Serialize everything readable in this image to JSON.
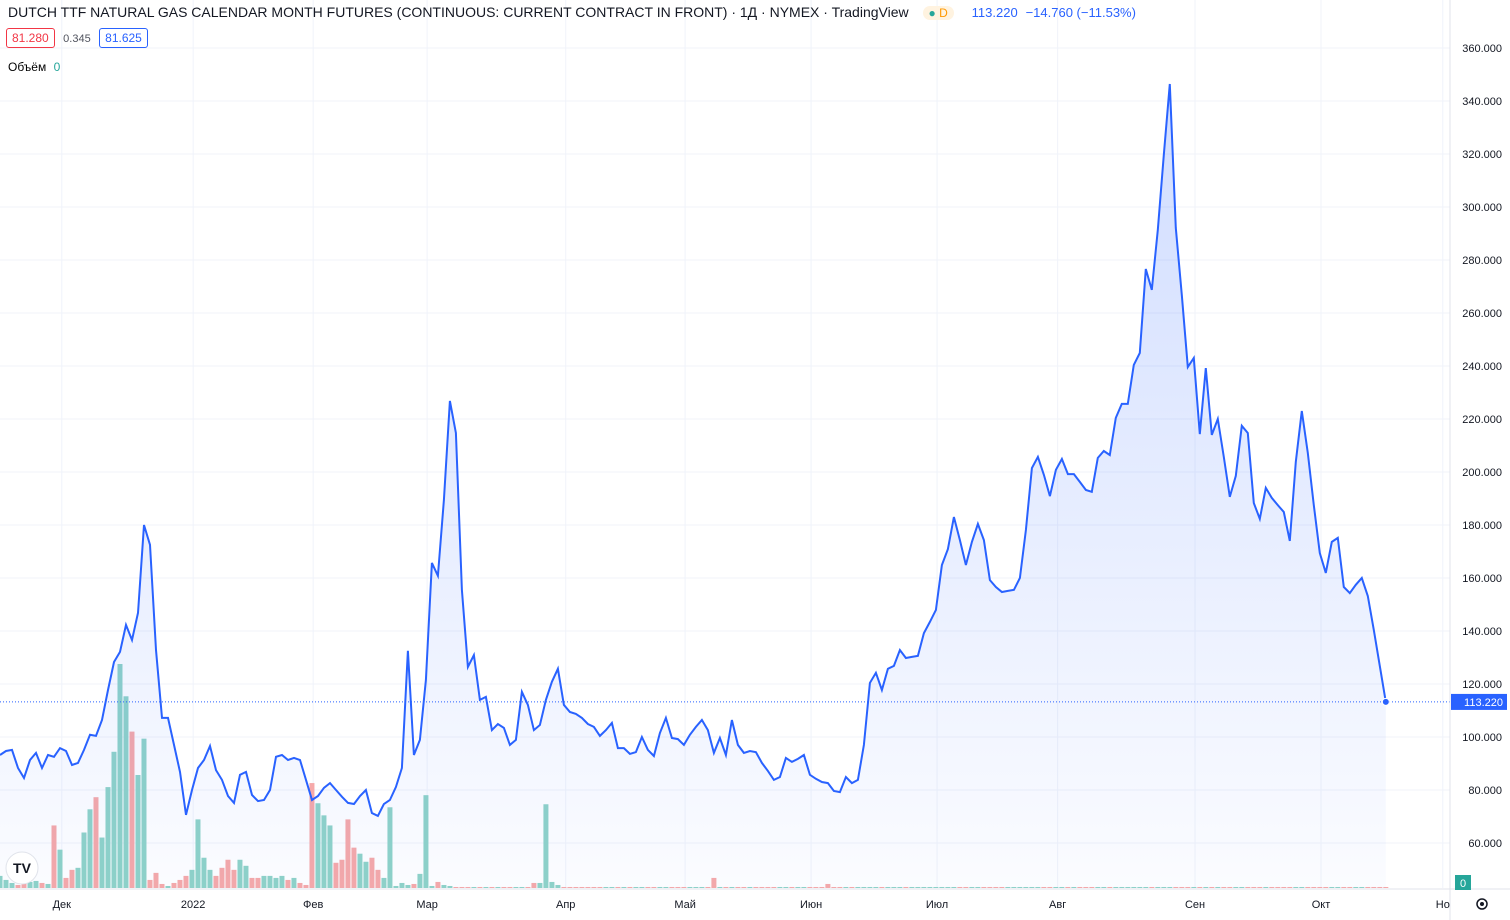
{
  "header": {
    "title": "DUTCH TTF NATURAL GAS CALENDAR MONTH FUTURES (CONTINUOUS: CURRENT CONTRACT IN FRONT) · 1Д · NYMEX · TradingView",
    "interval_badge": "D",
    "last": "113.220",
    "change": "−14.760 (−11.53%)",
    "bid": "81.280",
    "spread": "0.345",
    "ask": "81.625",
    "volume_label": "Объём",
    "volume_value": "0"
  },
  "chart_data": {
    "type": "area",
    "color": "#2962ff",
    "values": [
      93.2,
      94.7,
      95.1,
      88.3,
      84.5,
      91.3,
      94.0,
      88.3,
      93.2,
      92.5,
      95.8,
      94.7,
      89.4,
      90.2,
      95.1,
      100.8,
      100.4,
      106.4,
      117.7,
      128.3,
      132.1,
      142.3,
      136.6,
      146.8,
      180.0,
      172.5,
      132.8,
      107.2,
      107.2,
      97.0,
      86.8,
      70.6,
      80.0,
      88.3,
      91.3,
      96.6,
      87.5,
      83.8,
      77.7,
      75.1,
      85.7,
      86.8,
      78.1,
      75.8,
      76.2,
      80.0,
      92.5,
      93.2,
      91.3,
      92.1,
      91.3,
      83.8,
      76.2,
      77.7,
      80.8,
      82.6,
      80.0,
      77.4,
      75.1,
      74.7,
      77.7,
      80.0,
      71.3,
      70.2,
      74.7,
      76.2,
      81.1,
      88.3,
      132.5,
      93.2,
      98.9,
      121.5,
      165.7,
      160.8,
      189.4,
      226.8,
      214.7,
      155.5,
      126.4,
      130.9,
      114.0,
      115.1,
      102.6,
      104.9,
      103.4,
      97.0,
      98.9,
      117.0,
      112.1,
      102.6,
      104.5,
      114.0,
      120.8,
      125.7,
      112.1,
      109.4,
      108.7,
      107.2,
      104.9,
      103.8,
      100.4,
      102.6,
      105.3,
      95.8,
      95.8,
      93.6,
      94.3,
      100.0,
      95.1,
      92.8,
      101.5,
      107.2,
      99.6,
      99.2,
      97.0,
      100.8,
      103.8,
      106.4,
      102.6,
      94.0,
      99.6,
      93.2,
      106.4,
      97.0,
      94.0,
      94.7,
      94.3,
      90.2,
      87.2,
      83.8,
      84.9,
      92.1,
      90.6,
      91.7,
      93.2,
      85.7,
      84.2,
      83.0,
      82.6,
      79.6,
      79.2,
      84.9,
      82.6,
      83.8,
      97.0,
      120.4,
      124.2,
      117.7,
      125.7,
      126.8,
      132.8,
      129.8,
      130.2,
      130.6,
      139.2,
      143.4,
      147.9,
      164.9,
      170.9,
      183.0,
      174.3,
      164.9,
      173.6,
      180.4,
      174.3,
      159.2,
      156.6,
      154.7,
      155.1,
      155.5,
      160.0,
      178.1,
      201.5,
      205.7,
      198.9,
      190.9,
      200.8,
      204.9,
      199.2,
      199.2,
      196.2,
      193.2,
      192.5,
      205.3,
      207.9,
      206.4,
      220.4,
      225.7,
      225.7,
      240.4,
      244.9,
      276.6,
      268.7,
      291.3,
      319.6,
      346.4,
      292.1,
      266.8,
      239.6,
      243.0,
      214.3,
      239.2,
      214.0,
      220.0,
      205.7,
      190.6,
      198.5,
      217.4,
      214.7,
      188.3,
      182.3,
      194.0,
      190.2,
      187.5,
      184.9,
      174.0,
      203.8,
      223.0,
      207.2,
      187.5,
      169.4,
      161.9,
      173.6,
      175.1,
      156.6,
      154.3,
      157.4,
      160.0,
      153.2,
      140.4,
      126.8,
      113.22
    ],
    "volume": [
      12,
      8,
      5,
      3,
      10,
      6,
      7,
      5,
      4,
      62,
      38,
      10,
      18,
      20,
      55,
      78,
      90,
      50,
      100,
      135,
      222,
      190,
      155,
      112,
      148,
      8,
      15,
      4,
      2,
      5,
      8,
      12,
      18,
      68,
      30,
      18,
      12,
      20,
      28,
      18,
      28,
      22,
      10,
      10,
      12,
      12,
      10,
      12,
      8,
      10,
      5,
      3,
      104,
      84,
      72,
      62,
      25,
      28,
      68,
      40,
      34,
      26,
      30,
      18,
      10,
      80,
      2,
      5,
      3,
      4,
      14,
      92,
      2,
      6,
      3,
      2,
      1,
      1,
      1,
      1,
      1,
      1,
      1,
      1,
      1,
      1,
      1,
      1,
      1,
      5,
      5,
      83,
      6,
      3,
      1,
      1,
      1,
      1,
      1,
      1,
      1,
      1,
      1,
      1,
      1,
      1,
      1,
      1,
      1,
      1,
      1,
      1,
      1,
      1,
      1,
      1,
      1,
      1,
      1,
      10,
      1,
      1,
      1,
      1,
      1,
      1,
      1,
      1,
      1,
      1,
      1,
      1,
      1,
      1,
      1,
      1,
      1,
      1,
      4,
      1,
      1,
      1,
      1,
      1,
      1,
      1,
      1,
      1,
      1,
      1,
      1,
      1,
      1,
      1,
      1,
      1,
      1,
      1,
      1,
      1,
      1,
      1,
      1,
      1,
      1,
      1,
      1,
      1,
      1,
      1,
      1,
      1,
      1,
      1,
      1,
      1,
      1,
      1,
      1,
      1,
      1,
      1,
      1,
      1,
      1,
      1,
      1,
      1,
      1,
      1,
      1,
      1,
      1,
      1,
      1,
      1,
      1,
      1,
      1,
      1,
      1,
      1,
      1,
      1,
      1,
      1,
      1,
      1,
      1,
      1,
      1,
      1,
      1,
      1,
      1,
      1,
      1,
      1,
      1,
      1,
      1,
      1,
      1,
      1,
      1,
      1,
      1,
      1,
      1,
      1,
      1,
      1
    ],
    "ylim": [
      43,
      378.1
    ],
    "yticks": [
      {
        "value": 60,
        "label": "60.000"
      },
      {
        "value": 80,
        "label": "80.000"
      },
      {
        "value": 100,
        "label": "100.000"
      },
      {
        "value": 120,
        "label": "120.000"
      },
      {
        "value": 140,
        "label": "140.000"
      },
      {
        "value": 160,
        "label": "160.000"
      },
      {
        "value": 180,
        "label": "180.000"
      },
      {
        "value": 200,
        "label": "200.000"
      },
      {
        "value": 220,
        "label": "220.000"
      },
      {
        "value": 240,
        "label": "240.000"
      },
      {
        "value": 260,
        "label": "260.000"
      },
      {
        "value": 280,
        "label": "280.000"
      },
      {
        "value": 300,
        "label": "300.000"
      },
      {
        "value": 320,
        "label": "320.000"
      },
      {
        "value": 340,
        "label": "340.000"
      },
      {
        "value": 360,
        "label": "360.000"
      }
    ],
    "xlim": [
      0,
      241.7
    ],
    "xticks": [
      {
        "value": 10.3,
        "label": "Дек"
      },
      {
        "value": 32.2,
        "label": "2022"
      },
      {
        "value": 52.2,
        "label": "Фев"
      },
      {
        "value": 71.2,
        "label": "Мар"
      },
      {
        "value": 94.3,
        "label": "Апр"
      },
      {
        "value": 114.2,
        "label": "Май"
      },
      {
        "value": 135.2,
        "label": "Июн"
      },
      {
        "value": 156.2,
        "label": "Июл"
      },
      {
        "value": 176.3,
        "label": "Авг"
      },
      {
        "value": 199.2,
        "label": "Сен"
      },
      {
        "value": 220.2,
        "label": "Окт"
      },
      {
        "value": 240.5,
        "label": "Но"
      }
    ],
    "grid": true
  }
}
